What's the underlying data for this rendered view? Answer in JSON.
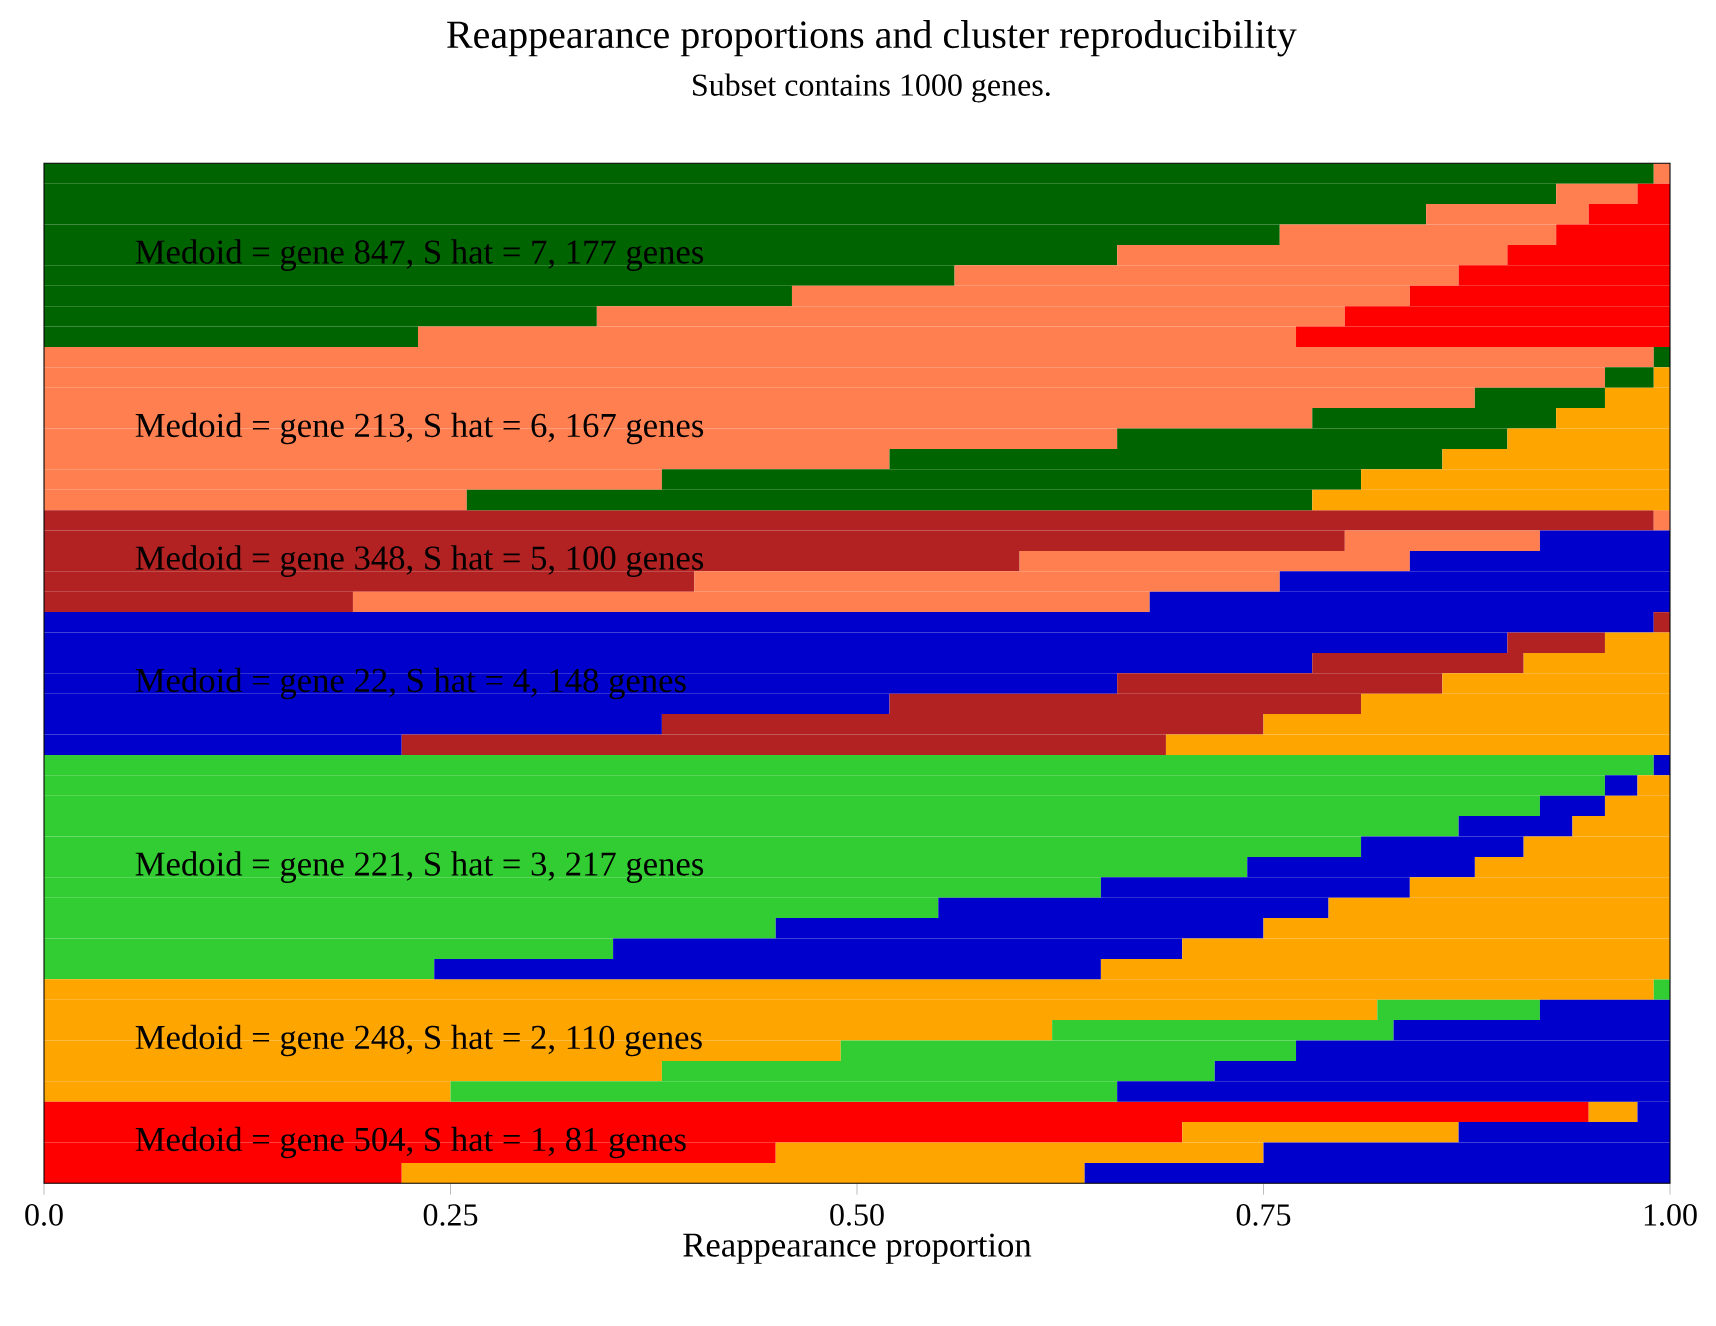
{
  "chart_data": {
    "type": "bar",
    "orientation": "horizontal",
    "stacked": true,
    "title": "Reappearance proportions and cluster reproducibility",
    "subtitle": "Subset contains 1000 genes.",
    "xlabel": "Reappearance proportion",
    "xlim": [
      0,
      1
    ],
    "xticks": [
      {
        "value": 0,
        "label": "0.0"
      },
      {
        "value": 0.25,
        "label": "0.25"
      },
      {
        "value": 0.5,
        "label": "0.50"
      },
      {
        "value": 0.75,
        "label": "0.75"
      },
      {
        "value": 1,
        "label": "1.00"
      }
    ],
    "categories": [
      null,
      null,
      null,
      null,
      null,
      null,
      null,
      null,
      null,
      null,
      null,
      null,
      null,
      null,
      null,
      null,
      null,
      null,
      null,
      null,
      null,
      null,
      null,
      null,
      null,
      null,
      null,
      null,
      null,
      null,
      null,
      null,
      null,
      null,
      null,
      null,
      null,
      null,
      null,
      null,
      null,
      null,
      null,
      null,
      null,
      null,
      null,
      null,
      null,
      null
    ],
    "series": [
      {
        "values": [
          0.99,
          0.93,
          0.85,
          0.76,
          0.66,
          0.56,
          0.46,
          0.34,
          0.23,
          0.99,
          0.96,
          0.88,
          0.78,
          0.66,
          0.52,
          0.38,
          0.26,
          0.99,
          0.8,
          0.6,
          0.4,
          0.19,
          0.99,
          0.9,
          0.78,
          0.66,
          0.52,
          0.38,
          0.22,
          0.99,
          0.96,
          0.92,
          0.87,
          0.81,
          0.74,
          0.65,
          0.55,
          0.45,
          0.35,
          0.24,
          0.99,
          0.82,
          0.62,
          0.49,
          0.38,
          0.25,
          0.95,
          0.7,
          0.45,
          0.22
        ],
        "colors": [
          "#006400",
          "#006400",
          "#006400",
          "#006400",
          "#006400",
          "#006400",
          "#006400",
          "#006400",
          "#006400",
          "#ff7f50",
          "#ff7f50",
          "#ff7f50",
          "#ff7f50",
          "#ff7f50",
          "#ff7f50",
          "#ff7f50",
          "#ff7f50",
          "#b22222",
          "#b22222",
          "#b22222",
          "#b22222",
          "#b22222",
          "#0000cd",
          "#0000cd",
          "#0000cd",
          "#0000cd",
          "#0000cd",
          "#0000cd",
          "#0000cd",
          "#32cd32",
          "#32cd32",
          "#32cd32",
          "#32cd32",
          "#32cd32",
          "#32cd32",
          "#32cd32",
          "#32cd32",
          "#32cd32",
          "#32cd32",
          "#32cd32",
          "#ffa500",
          "#ffa500",
          "#ffa500",
          "#ffa500",
          "#ffa500",
          "#ffa500",
          "#ff0000",
          "#ff0000",
          "#ff0000",
          "#ff0000"
        ]
      },
      {
        "values": [
          0.01,
          0.05,
          0.1,
          0.17,
          0.24,
          0.31,
          0.38,
          0.46,
          0.54,
          0.01,
          0.03,
          0.08,
          0.15,
          0.24,
          0.34,
          0.43,
          0.52,
          0.01,
          0.12,
          0.24,
          0.36,
          0.49,
          0.01,
          0.06,
          0.13,
          0.2,
          0.29,
          0.37,
          0.47,
          0.01,
          0.02,
          0.04,
          0.07,
          0.1,
          0.14,
          0.19,
          0.24,
          0.3,
          0.35,
          0.41,
          0.01,
          0.1,
          0.21,
          0.28,
          0.34,
          0.41,
          0.03,
          0.17,
          0.3,
          0.42
        ],
        "colors": [
          "#ff7f50",
          "#ff7f50",
          "#ff7f50",
          "#ff7f50",
          "#ff7f50",
          "#ff7f50",
          "#ff7f50",
          "#ff7f50",
          "#ff7f50",
          "#006400",
          "#006400",
          "#006400",
          "#006400",
          "#006400",
          "#006400",
          "#006400",
          "#006400",
          "#ff7f50",
          "#ff7f50",
          "#ff7f50",
          "#ff7f50",
          "#ff7f50",
          "#b22222",
          "#b22222",
          "#b22222",
          "#b22222",
          "#b22222",
          "#b22222",
          "#b22222",
          "#0000cd",
          "#0000cd",
          "#0000cd",
          "#0000cd",
          "#0000cd",
          "#0000cd",
          "#0000cd",
          "#0000cd",
          "#0000cd",
          "#0000cd",
          "#0000cd",
          "#32cd32",
          "#32cd32",
          "#32cd32",
          "#32cd32",
          "#32cd32",
          "#32cd32",
          "#ffa500",
          "#ffa500",
          "#ffa500",
          "#ffa500"
        ]
      },
      {
        "values": [
          0,
          0.02,
          0.05,
          0.07,
          0.1,
          0.13,
          0.16,
          0.2,
          0.23,
          0,
          0.01,
          0.04,
          0.07,
          0.1,
          0.14,
          0.19,
          0.22,
          0,
          0.08,
          0.16,
          0.24,
          0.32,
          0,
          0.04,
          0.09,
          0.14,
          0.19,
          0.25,
          0.31,
          0,
          0.02,
          0.04,
          0.06,
          0.09,
          0.12,
          0.16,
          0.21,
          0.25,
          0.3,
          0.35,
          0,
          0.08,
          0.17,
          0.23,
          0.28,
          0.34,
          0.02,
          0.13,
          0.25,
          0.36
        ],
        "colors": [
          "#ff0000",
          "#ff0000",
          "#ff0000",
          "#ff0000",
          "#ff0000",
          "#ff0000",
          "#ff0000",
          "#ff0000",
          "#ff0000",
          "#ffa500",
          "#ffa500",
          "#ffa500",
          "#ffa500",
          "#ffa500",
          "#ffa500",
          "#ffa500",
          "#ffa500",
          "#0000cd",
          "#0000cd",
          "#0000cd",
          "#0000cd",
          "#0000cd",
          "#ffa500",
          "#ffa500",
          "#ffa500",
          "#ffa500",
          "#ffa500",
          "#ffa500",
          "#ffa500",
          "#ffa500",
          "#ffa500",
          "#ffa500",
          "#ffa500",
          "#ffa500",
          "#ffa500",
          "#ffa500",
          "#ffa500",
          "#ffa500",
          "#ffa500",
          "#ffa500",
          "#0000cd",
          "#0000cd",
          "#0000cd",
          "#0000cd",
          "#0000cd",
          "#0000cd",
          "#0000cd",
          "#0000cd",
          "#0000cd",
          "#0000cd"
        ]
      }
    ],
    "annotations": [
      "Medoid = gene 847, S hat = 7, 177 genes",
      "Medoid = gene 213, S hat = 6, 167 genes",
      "Medoid = gene 348, S hat = 5, 100 genes",
      "Medoid = gene 22, S hat = 4, 148 genes",
      "Medoid = gene 221, S hat = 3, 217 genes",
      "Medoid = gene 248, S hat = 2, 110 genes",
      "Medoid = gene 504, S hat = 1, 81 genes"
    ]
  }
}
